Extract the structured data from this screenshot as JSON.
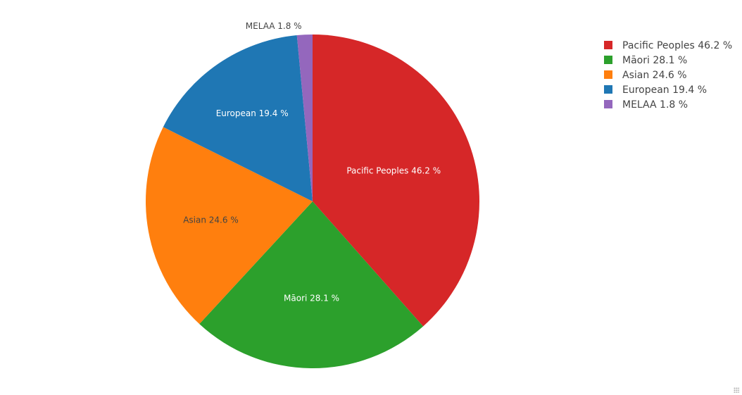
{
  "chart_data": {
    "type": "pie",
    "title": "",
    "categories": [
      "Pacific Peoples",
      "Māori",
      "Asian",
      "European",
      "MELAA"
    ],
    "values": [
      46.2,
      28.1,
      24.6,
      19.4,
      1.8
    ],
    "colors": [
      "#d62728",
      "#2ca02c",
      "#ff7f0e",
      "#1f77b4",
      "#9467bd"
    ],
    "slice_labels": [
      "Pacific Peoples 46.2 %",
      "Māori 28.1 %",
      "Asian 24.6 %",
      "European 19.4 %",
      "MELAA 1.8 %"
    ],
    "legend": {
      "placement": "top-right",
      "entries": [
        "Pacific Peoples 46.2 %",
        "Māori 28.1 %",
        "Asian 24.6 %",
        "European 19.4 %",
        "MELAA 1.8 %"
      ]
    },
    "direction": "clockwise",
    "start": "top",
    "label_colors": [
      "#ffffff",
      "#ffffff",
      "#444444",
      "#ffffff",
      "#444444"
    ]
  }
}
